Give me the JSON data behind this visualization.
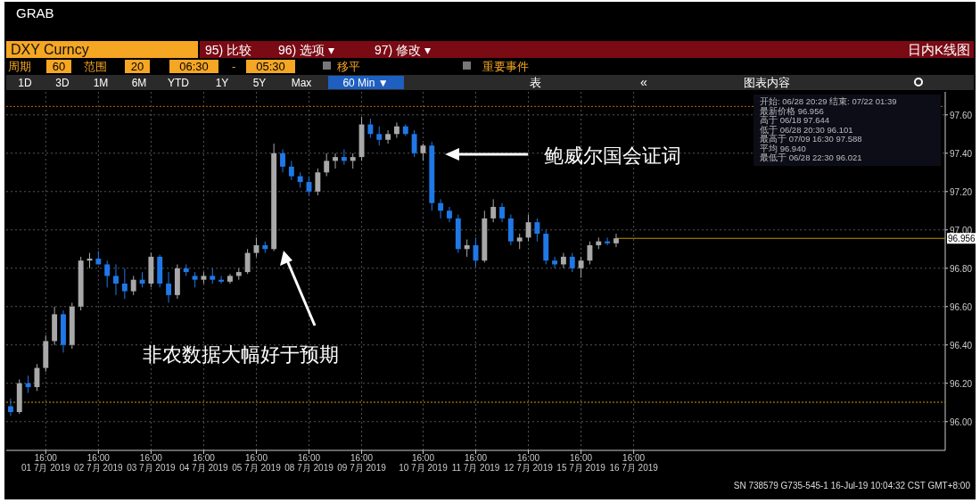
{
  "chart_data": {
    "type": "candlestick",
    "title": "DXY Curncy",
    "subtitle": "日内K线图",
    "categories": [
      null,
      null,
      null,
      null,
      "16:00 01 7月 2019",
      null,
      null,
      null,
      null,
      null,
      "16:00 02 7月 2019",
      null,
      null,
      null,
      null,
      null,
      "16:00 03 7月 2019",
      null,
      null,
      null,
      null,
      null,
      "16:00 04 7月 2019",
      null,
      null,
      null,
      null,
      null,
      "16:00 05 7月 2019",
      null,
      null,
      null,
      null,
      null,
      "16:00 08 7月 2019",
      null,
      null,
      null,
      null,
      null,
      "16:00 09 7月 2019",
      null,
      null,
      null,
      null,
      null,
      null,
      "16:00 10 7月 2019",
      null,
      null,
      null,
      null,
      null,
      "16:00 11 7月 2019",
      null,
      null,
      null,
      null,
      null,
      "16:00 12 7月 2019",
      null,
      null,
      null,
      null,
      null,
      "16:00 15 7月 2019",
      null,
      null,
      null,
      null,
      null,
      "16:00 16 7月 2019",
      null,
      null,
      null,
      null,
      null,
      null,
      null,
      null,
      null,
      null,
      null,
      null,
      null,
      null,
      null,
      null,
      null,
      null,
      null,
      null,
      null,
      null,
      null,
      null,
      null,
      null,
      null,
      null,
      null,
      null,
      null,
      null,
      null,
      null,
      null
    ],
    "ohlc": [
      [
        96.08,
        96.12,
        96.03,
        96.05
      ],
      [
        96.05,
        96.22,
        96.04,
        96.2
      ],
      [
        96.2,
        96.24,
        96.15,
        96.18
      ],
      [
        96.18,
        96.3,
        96.16,
        96.28
      ],
      [
        96.28,
        96.45,
        96.26,
        96.42
      ],
      [
        96.42,
        96.6,
        96.4,
        96.56
      ],
      [
        96.56,
        96.58,
        96.36,
        96.4
      ],
      [
        96.4,
        96.62,
        96.38,
        96.6
      ],
      [
        96.6,
        96.86,
        96.58,
        96.84
      ],
      [
        96.84,
        96.88,
        96.8,
        96.85
      ],
      [
        96.85,
        96.89,
        96.82,
        96.82
      ],
      [
        96.82,
        96.84,
        96.7,
        96.76
      ],
      [
        96.76,
        96.82,
        96.66,
        96.72
      ],
      [
        96.72,
        96.8,
        96.64,
        96.68
      ],
      [
        96.68,
        96.76,
        96.66,
        96.74
      ],
      [
        96.74,
        96.78,
        96.7,
        96.72
      ],
      [
        96.72,
        96.88,
        96.7,
        96.86
      ],
      [
        96.86,
        96.87,
        96.7,
        96.72
      ],
      [
        96.72,
        96.78,
        96.62,
        96.66
      ],
      [
        96.66,
        96.82,
        96.64,
        96.8
      ],
      [
        96.8,
        96.82,
        96.76,
        96.78
      ],
      [
        96.76,
        96.78,
        96.7,
        96.74
      ],
      [
        96.74,
        96.78,
        96.72,
        96.76
      ],
      [
        96.76,
        96.8,
        96.72,
        96.74
      ],
      [
        96.74,
        96.76,
        96.72,
        96.73
      ],
      [
        96.73,
        96.77,
        96.72,
        96.76
      ],
      [
        96.76,
        96.8,
        96.74,
        96.78
      ],
      [
        96.78,
        96.9,
        96.77,
        96.88
      ],
      [
        96.88,
        96.96,
        96.86,
        96.92
      ],
      [
        96.92,
        96.94,
        96.88,
        96.9
      ],
      [
        96.9,
        97.45,
        96.89,
        97.4
      ],
      [
        97.4,
        97.42,
        97.3,
        97.33
      ],
      [
        97.33,
        97.36,
        97.26,
        97.28
      ],
      [
        97.28,
        97.3,
        97.22,
        97.25
      ],
      [
        97.25,
        97.28,
        97.18,
        97.2
      ],
      [
        97.2,
        97.32,
        97.18,
        97.3
      ],
      [
        97.3,
        97.4,
        97.28,
        97.36
      ],
      [
        97.36,
        97.4,
        97.32,
        97.38
      ],
      [
        97.38,
        97.42,
        97.34,
        97.36
      ],
      [
        97.36,
        97.4,
        97.32,
        97.38
      ],
      [
        97.38,
        97.59,
        97.36,
        97.55
      ],
      [
        97.55,
        97.58,
        97.48,
        97.5
      ],
      [
        97.5,
        97.54,
        97.44,
        97.47
      ],
      [
        97.47,
        97.52,
        97.45,
        97.5
      ],
      [
        97.5,
        97.56,
        97.48,
        97.54
      ],
      [
        97.54,
        97.55,
        97.49,
        97.5
      ],
      [
        97.5,
        97.52,
        97.38,
        97.4
      ],
      [
        97.4,
        97.45,
        97.36,
        97.44
      ],
      [
        97.44,
        97.46,
        97.1,
        97.14
      ],
      [
        97.14,
        97.16,
        97.06,
        97.1
      ],
      [
        97.1,
        97.12,
        97.04,
        97.06
      ],
      [
        97.06,
        97.08,
        96.88,
        96.9
      ],
      [
        96.9,
        96.95,
        96.86,
        96.92
      ],
      [
        96.92,
        96.96,
        96.81,
        96.84
      ],
      [
        96.84,
        97.1,
        96.83,
        97.06
      ],
      [
        97.06,
        97.16,
        97.04,
        97.12
      ],
      [
        97.12,
        97.14,
        97.04,
        97.06
      ],
      [
        97.06,
        97.08,
        96.92,
        96.94
      ],
      [
        96.94,
        96.98,
        96.9,
        96.96
      ],
      [
        96.96,
        97.08,
        96.94,
        97.04
      ],
      [
        97.04,
        97.06,
        96.94,
        96.98
      ],
      [
        96.98,
        97.0,
        96.82,
        96.84
      ],
      [
        96.84,
        96.86,
        96.8,
        96.82
      ],
      [
        96.82,
        96.88,
        96.8,
        96.86
      ],
      [
        96.86,
        96.88,
        96.78,
        96.8
      ],
      [
        96.8,
        96.86,
        96.75,
        96.84
      ],
      [
        96.84,
        96.94,
        96.82,
        96.92
      ],
      [
        96.92,
        96.96,
        96.9,
        96.94
      ],
      [
        96.94,
        96.96,
        96.92,
        96.93
      ],
      [
        96.93,
        96.98,
        96.91,
        96.956
      ],
      null,
      null,
      null,
      null,
      null,
      null,
      null,
      null,
      null,
      null,
      null,
      null,
      null,
      null,
      null,
      null,
      null,
      null,
      null,
      null,
      null,
      null,
      null,
      null,
      null,
      null,
      null,
      null,
      null,
      null,
      null,
      null,
      null,
      null,
      null,
      null,
      null
    ],
    "colors": [
      "#1f78e6",
      "#a8a8a8",
      "#1f78e6",
      "#a8a8a8",
      "#a8a8a8",
      "#a8a8a8",
      "#1f78e6",
      "#a8a8a8",
      "#a8a8a8",
      "#a8a8a8",
      "#1f78e6",
      "#1f78e6",
      "#1f78e6",
      "#1f78e6",
      "#a8a8a8",
      "#1f78e6",
      "#a8a8a8",
      "#1f78e6",
      "#1f78e6",
      "#a8a8a8",
      "#1f78e6",
      "#1f78e6",
      "#a8a8a8",
      "#1f78e6",
      "#1f78e6",
      "#a8a8a8",
      "#a8a8a8",
      "#a8a8a8",
      "#a8a8a8",
      "#1f78e6",
      "#a8a8a8",
      "#1f78e6",
      "#1f78e6",
      "#1f78e6",
      "#1f78e6",
      "#a8a8a8",
      "#a8a8a8",
      "#a8a8a8",
      "#1f78e6",
      "#a8a8a8",
      "#a8a8a8",
      "#1f78e6",
      "#1f78e6",
      "#a8a8a8",
      "#a8a8a8",
      "#1f78e6",
      "#1f78e6",
      "#a8a8a8",
      "#1f78e6",
      "#1f78e6",
      "#1f78e6",
      "#1f78e6",
      "#a8a8a8",
      "#1f78e6",
      "#a8a8a8",
      "#a8a8a8",
      "#1f78e6",
      "#1f78e6",
      "#a8a8a8",
      "#a8a8a8",
      "#1f78e6",
      "#1f78e6",
      "#1f78e6",
      "#a8a8a8",
      "#1f78e6",
      "#a8a8a8",
      "#a8a8a8",
      "#a8a8a8",
      "#1f78e6",
      "#a8a8a8",
      null,
      null,
      null,
      null,
      null,
      null,
      null,
      null,
      null,
      null,
      null,
      null,
      null,
      null,
      null,
      null,
      null,
      null,
      null,
      null,
      null,
      null,
      null,
      null,
      null,
      null,
      null,
      null,
      null,
      null,
      null,
      null,
      null,
      null,
      null,
      null,
      null
    ],
    "ylim": [
      95.85,
      97.72
    ],
    "yticks": [
      {
        "value": 96.0,
        "label": "96.00"
      },
      {
        "value": 96.2,
        "label": "96.20"
      },
      {
        "value": 96.4,
        "label": "96.40"
      },
      {
        "value": 96.6,
        "label": "96.60"
      },
      {
        "value": 96.8,
        "label": "96.80"
      },
      {
        "value": 97.0,
        "label": "97.00"
      },
      {
        "value": 97.2,
        "label": "97.20"
      },
      {
        "value": 97.4,
        "label": "97.40"
      },
      {
        "value": 97.6,
        "label": "97.60"
      }
    ],
    "ref_lines": [
      {
        "axis": "y",
        "value": 97.644,
        "color": "#c86400",
        "line_style": "dotted"
      },
      {
        "axis": "y",
        "value": 96.101,
        "color": "#d0a000",
        "line_style": "dotted"
      },
      {
        "axis": "y",
        "value": 96.956,
        "color": "#b89a00",
        "line_style": "solid",
        "label": "96.956"
      }
    ],
    "grid": true,
    "annotations": [
      "GRAB",
      "95) 比较",
      "96) 选项 ▾",
      "97) 修改 ▾",
      "周期",
      "60",
      "范围",
      "20",
      "06:30",
      "-",
      "05:30",
      "移平",
      "重要事件",
      "1D",
      "3D",
      "1M",
      "6M",
      "YTD",
      "1Y",
      "5Y",
      "Max",
      "60 Min ▼",
      "表",
      "«",
      "图表内容",
      "开始: 06/28 20:29 结束: 07/22 01:39",
      "最新价格 96.956",
      "高于 06/18 97.644",
      "低于 06/28 20:30 96.101",
      "最高于 07/09 16:30 97.588",
      "平均 96.940",
      "最低于 06/28 22:30 96.021",
      "非农数据大幅好于预期",
      "鲍威尔国会证词",
      "SN 738579 G735-545-1 16-Jul-19 10:04:32 CST GMT+8:00"
    ]
  }
}
